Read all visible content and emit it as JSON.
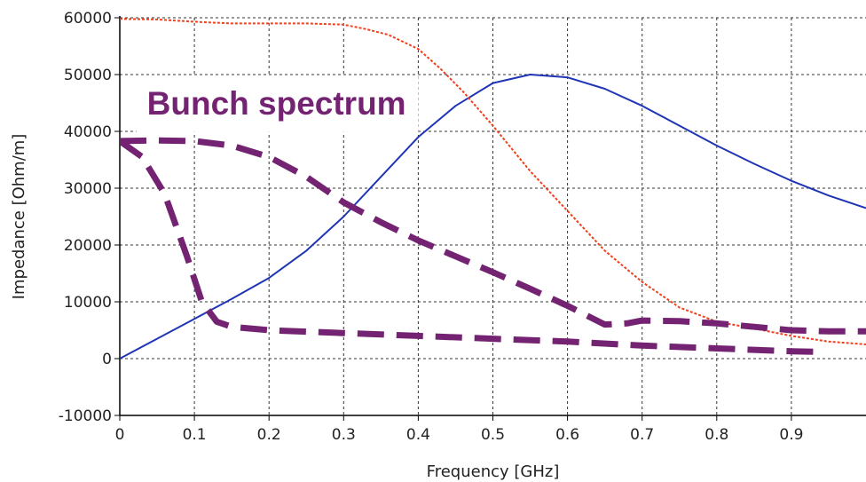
{
  "chart_data": {
    "type": "line",
    "xlabel": "Frequency [GHz]",
    "ylabel": "Impedance [Ohm/m]",
    "xlim": [
      0,
      1.0
    ],
    "ylim": [
      -10000,
      60000
    ],
    "x_ticks": [
      {
        "v": 0,
        "label": "0"
      },
      {
        "v": 0.1,
        "label": "0.1"
      },
      {
        "v": 0.2,
        "label": "0.2"
      },
      {
        "v": 0.3,
        "label": "0.3"
      },
      {
        "v": 0.4,
        "label": "0.4"
      },
      {
        "v": 0.5,
        "label": "0.5"
      },
      {
        "v": 0.6,
        "label": "0.6"
      },
      {
        "v": 0.7,
        "label": "0.7"
      },
      {
        "v": 0.8,
        "label": "0.8"
      },
      {
        "v": 0.9,
        "label": "0.9"
      }
    ],
    "y_ticks": [
      {
        "v": -10000,
        "label": "-10000"
      },
      {
        "v": 0,
        "label": "0"
      },
      {
        "v": 10000,
        "label": "10000"
      },
      {
        "v": 20000,
        "label": "20000"
      },
      {
        "v": 30000,
        "label": "30000"
      },
      {
        "v": 40000,
        "label": "40000"
      },
      {
        "v": 50000,
        "label": "50000"
      },
      {
        "v": 60000,
        "label": "60000"
      }
    ],
    "grid": true,
    "series": [
      {
        "style": "solid",
        "color": "#1f35b5",
        "x": [
          0,
          0.05,
          0.1,
          0.15,
          0.2,
          0.25,
          0.3,
          0.35,
          0.4,
          0.45,
          0.5,
          0.55,
          0.6,
          0.65,
          0.7,
          0.75,
          0.8,
          0.85,
          0.9,
          0.95,
          1.0
        ],
        "y": [
          0,
          3500,
          7000,
          10500,
          14200,
          19000,
          25000,
          32000,
          39000,
          44500,
          48500,
          50000,
          49500,
          47500,
          44500,
          41000,
          37500,
          34300,
          31300,
          28700,
          26500
        ]
      },
      {
        "style": "dotted",
        "color": "#f0401c",
        "x": [
          0,
          0.05,
          0.1,
          0.15,
          0.2,
          0.25,
          0.3,
          0.33,
          0.36,
          0.4,
          0.43,
          0.46,
          0.5,
          0.55,
          0.6,
          0.65,
          0.7,
          0.75,
          0.8,
          0.85,
          0.9,
          0.95,
          1.0
        ],
        "y": [
          59800,
          59700,
          59300,
          59000,
          59000,
          59000,
          58800,
          58000,
          57000,
          54500,
          51000,
          47000,
          41000,
          33000,
          26000,
          19000,
          13500,
          9000,
          6500,
          5300,
          4000,
          3000,
          2500
        ]
      },
      {
        "style": "dashed",
        "color": "#742372",
        "x": [
          0,
          0.05,
          0.1,
          0.15,
          0.2,
          0.25,
          0.3,
          0.35,
          0.4,
          0.45,
          0.5,
          0.55,
          0.6,
          0.65,
          0.68,
          0.7,
          0.75,
          0.8,
          0.85,
          0.9,
          0.95,
          1.0
        ],
        "y": [
          38300,
          38400,
          38300,
          37500,
          35500,
          32000,
          27500,
          24000,
          20800,
          18000,
          15200,
          12300,
          9300,
          6000,
          6200,
          6700,
          6600,
          6200,
          5600,
          5000,
          4800,
          4800
        ]
      },
      {
        "style": "dashed",
        "color": "#742372",
        "x": [
          0,
          0.03,
          0.06,
          0.09,
          0.11,
          0.13,
          0.15,
          0.2,
          0.3,
          0.4,
          0.5,
          0.6,
          0.7,
          0.8,
          0.9,
          0.93
        ],
        "y": [
          38300,
          35500,
          29000,
          18000,
          10000,
          6500,
          5600,
          5000,
          4500,
          4000,
          3500,
          3000,
          2300,
          1800,
          1300,
          1200
        ]
      }
    ],
    "annotations": [
      {
        "text": "Bunch spectrum",
        "color": "#742372",
        "x": 0.21,
        "y": 43000
      }
    ]
  }
}
